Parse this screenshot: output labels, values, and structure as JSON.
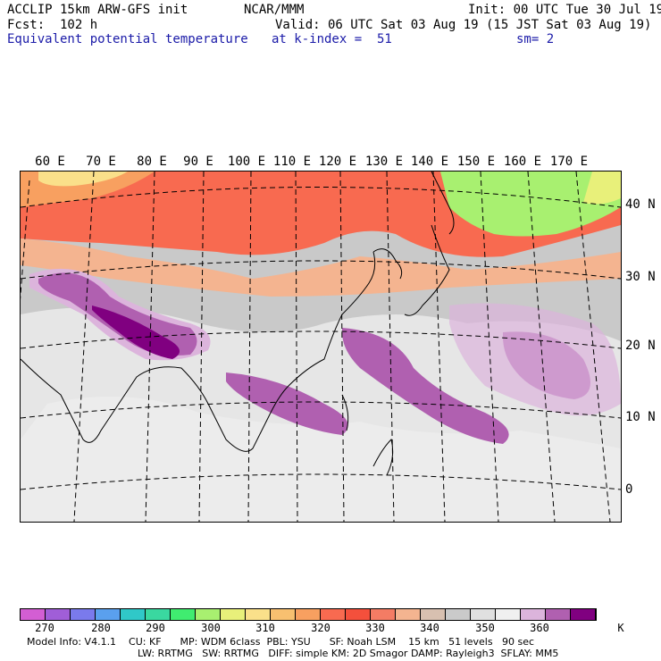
{
  "header": {
    "model": "ACCLIP 15km ARW-GFS init",
    "org": "NCAR/MMM",
    "init": "Init: 00 UTC Tue 30 Jul 19",
    "fcst": "Fcst:  102 h",
    "valid": "Valid: 06 UTC Sat 03 Aug 19 (15 JST Sat 03 Aug 19)",
    "field": "Equivalent potential temperature",
    "level": "at k-index =  51",
    "smooth": "sm= 2"
  },
  "map": {
    "lon_labels": [
      "60 E",
      "70 E",
      "80 E",
      "90 E",
      "100 E",
      "110 E",
      "120 E",
      "130 E",
      "140 E",
      "150 E",
      "160 E",
      "170 E"
    ],
    "lat_labels": [
      "40 N",
      "30 N",
      "20 N",
      "10 N",
      "0"
    ]
  },
  "colorbar": {
    "colors": [
      "#d35ed3",
      "#a05ed8",
      "#7a7aec",
      "#5aa0ee",
      "#30c8c8",
      "#3ad8a0",
      "#40ec70",
      "#a8f070",
      "#e8f07a",
      "#fae08a",
      "#f8c070",
      "#f8a060",
      "#f86a50",
      "#f4503c",
      "#f47c64",
      "#f4b490",
      "#d8c0b0",
      "#cacaca",
      "#e0e0e0",
      "#f0f0f0",
      "#dcb4dc",
      "#b060b0",
      "#800080"
    ],
    "labels": [
      "270",
      "280",
      "290",
      "300",
      "310",
      "320",
      "330",
      "340",
      "350",
      "360"
    ],
    "unit": "K"
  },
  "footer": {
    "line1": "Model Info: V4.1.1    CU: KF      MP: WDM 6class  PBL: YSU      SF: Noah LSM    15 km   51 levels   90 sec",
    "line2": "LW: RRTMG   SW: RRTMG   DIFF: simple KM: 2D Smagor DAMP: Rayleigh3  SFLAY: MM5"
  }
}
